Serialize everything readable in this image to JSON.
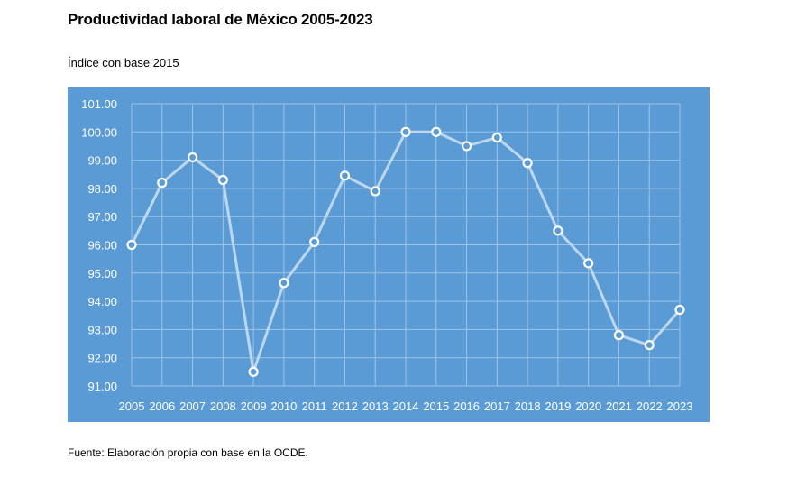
{
  "title": "Productividad laboral de México 2005-2023",
  "subtitle": "Índice con base 2015",
  "source": "Fuente: Elaboración propia con base en la OCDE.",
  "colors": {
    "plot_background": "#5b9bd5",
    "line": "#bdd7ee",
    "marker_fill": "#5b9bd5",
    "marker_stroke": "#ffffff",
    "grid": "#9dc3e6",
    "text": "#ffffff"
  },
  "chart_data": {
    "type": "line",
    "title": "",
    "xlabel": "",
    "ylabel": "",
    "ylim": [
      91,
      101
    ],
    "grid": true,
    "markers": true,
    "y_tick_labels": [
      "91.00",
      "92.00",
      "93.00",
      "94.00",
      "95.00",
      "96.00",
      "97.00",
      "98.00",
      "99.00",
      "100.00",
      "101.00"
    ],
    "categories": [
      "2005",
      "2006",
      "2007",
      "2008",
      "2009",
      "2010",
      "2011",
      "2012",
      "2013",
      "2014",
      "2015",
      "2016",
      "2017",
      "2018",
      "2019",
      "2020",
      "2021",
      "2022",
      "2023"
    ],
    "series": [
      {
        "values": [
          96.0,
          98.2,
          99.1,
          98.3,
          91.5,
          94.65,
          96.1,
          98.45,
          97.9,
          100.0,
          100.0,
          99.5,
          99.8,
          98.9,
          96.5,
          95.35,
          92.8,
          92.45,
          93.7
        ]
      }
    ]
  }
}
